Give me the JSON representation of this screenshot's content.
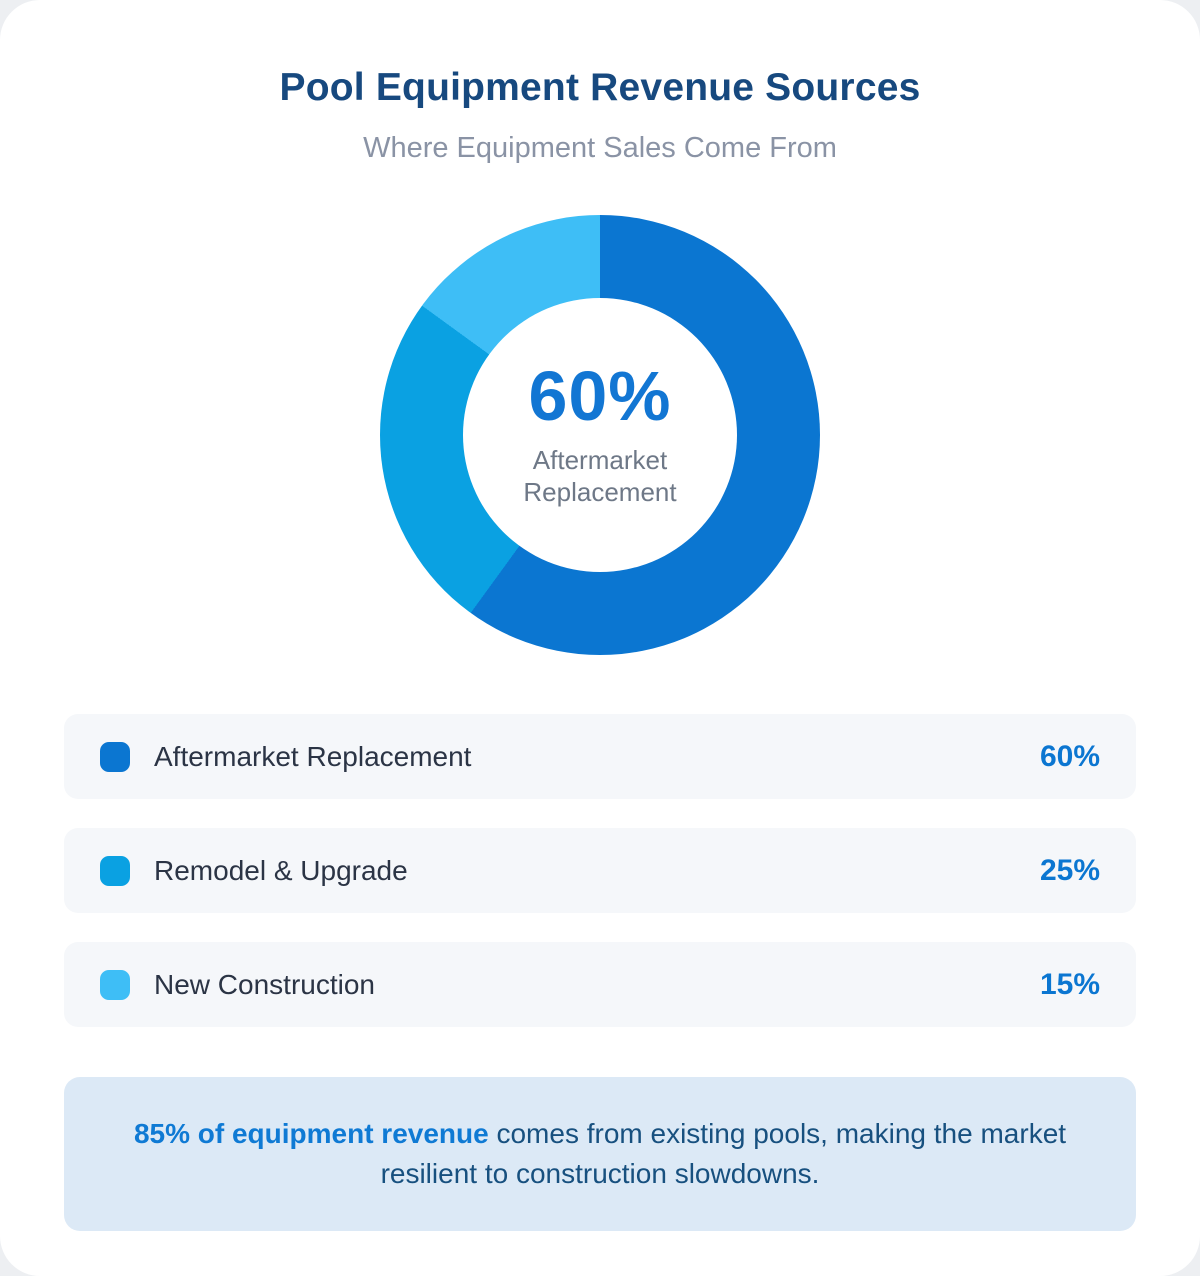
{
  "header": {
    "title": "Pool Equipment Revenue Sources",
    "subtitle": "Where Equipment Sales Come From"
  },
  "chart_data": {
    "type": "pie",
    "subtype": "donut",
    "title": "Pool Equipment Revenue Sources",
    "subtitle": "Where Equipment Sales Come From",
    "categories": [
      "Aftermarket Replacement",
      "Remodel & Upgrade",
      "New Construction"
    ],
    "values": [
      60,
      25,
      15
    ],
    "unit": "%",
    "colors": [
      "#0b76d1",
      "#0aa1e2",
      "#3ebef6"
    ],
    "start_angle_deg": 0,
    "direction": "clockwise",
    "center_value": "60%",
    "center_label": "Aftermarket Replacement",
    "legend_position": "bottom"
  },
  "donut": {
    "center_value": "60%",
    "center_label_line1": "Aftermarket",
    "center_label_line2": "Replacement"
  },
  "legend": {
    "items": [
      {
        "label": "Aftermarket Replacement",
        "value": "60%",
        "color": "#0b76d1"
      },
      {
        "label": "Remodel & Upgrade",
        "value": "25%",
        "color": "#0aa1e2"
      },
      {
        "label": "New Construction",
        "value": "15%",
        "color": "#3ebef6"
      }
    ]
  },
  "note": {
    "highlight": "85% of equipment revenue",
    "rest": " comes from existing pools, making the market resilient to construction slowdowns."
  }
}
